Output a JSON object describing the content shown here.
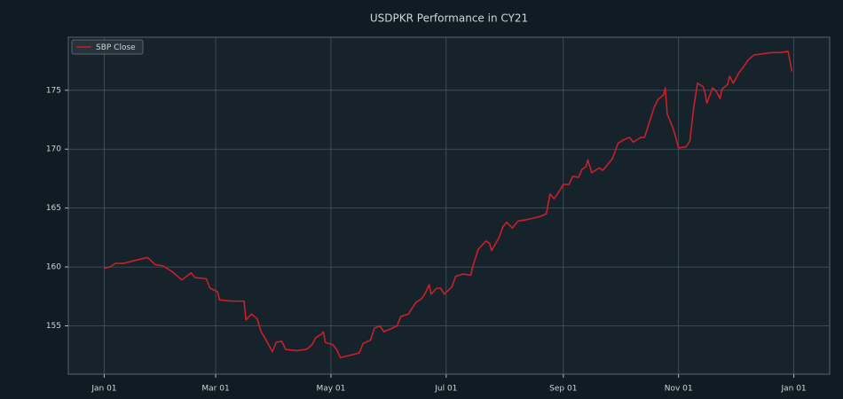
{
  "chart_data": {
    "type": "line",
    "title": "USDPKR Performance in CY21",
    "x": [
      0,
      3,
      6,
      10,
      15,
      20,
      23,
      27,
      31,
      36,
      41,
      46,
      48,
      54,
      56,
      60,
      61,
      68,
      74,
      75,
      78,
      81,
      83,
      85,
      89,
      91,
      94,
      96,
      102,
      107,
      110,
      112,
      115,
      116,
      117,
      121,
      123,
      125,
      130,
      135,
      137,
      141,
      143,
      146,
      148,
      151,
      155,
      157,
      161,
      163,
      165,
      168,
      170,
      172,
      173,
      176,
      178,
      180,
      184,
      186,
      190,
      194,
      195,
      198,
      202,
      204,
      205,
      209,
      211,
      213,
      216,
      219,
      223,
      226,
      231,
      234,
      236,
      238,
      240,
      243,
      246,
      248,
      251,
      253,
      255,
      256,
      258,
      262,
      264,
      269,
      272,
      275,
      278,
      280,
      284,
      286,
      288,
      291,
      293,
      296,
      297,
      298,
      301,
      302,
      304,
      308,
      310,
      312,
      314,
      317,
      318,
      319,
      322,
      324,
      326,
      327,
      330,
      331,
      333,
      336,
      338,
      341,
      344,
      349,
      353,
      358,
      362,
      364
    ],
    "series": [
      {
        "name": "SBP Close",
        "color": "#c8202c",
        "values": [
          159.9,
          160.0,
          160.3,
          160.3,
          160.5,
          160.7,
          160.8,
          160.2,
          160.1,
          159.6,
          158.9,
          159.5,
          159.1,
          159.0,
          158.2,
          157.9,
          157.2,
          157.1,
          157.1,
          155.5,
          156.0,
          155.6,
          154.5,
          154.0,
          152.8,
          153.6,
          153.7,
          153.0,
          152.9,
          153.0,
          153.4,
          154.0,
          154.3,
          154.5,
          153.6,
          153.4,
          153.0,
          152.3,
          152.5,
          152.7,
          153.5,
          153.8,
          154.8,
          155.0,
          154.5,
          154.7,
          155.0,
          155.8,
          156.0,
          156.5,
          157.0,
          157.3,
          157.8,
          158.5,
          157.7,
          158.2,
          158.2,
          157.7,
          158.3,
          159.2,
          159.4,
          159.3,
          160.0,
          161.5,
          162.2,
          162.0,
          161.4,
          162.5,
          163.4,
          163.8,
          163.3,
          163.9,
          164.0,
          164.1,
          164.3,
          164.5,
          166.2,
          165.8,
          166.2,
          167.0,
          167.0,
          167.7,
          167.6,
          168.3,
          168.5,
          169.1,
          168.0,
          168.4,
          168.2,
          169.2,
          170.5,
          170.8,
          171.0,
          170.6,
          171.0,
          171.0,
          172.0,
          173.5,
          174.2,
          174.6,
          175.2,
          173.0,
          171.8,
          171.3,
          170.1,
          170.2,
          170.7,
          173.5,
          175.6,
          175.3,
          174.8,
          173.9,
          175.2,
          174.9,
          174.3,
          175.1,
          175.5,
          176.2,
          175.6,
          176.5,
          176.9,
          177.6,
          178.0,
          178.1,
          178.2,
          178.2,
          178.3,
          176.6
        ]
      }
    ],
    "xlim": [
      -19,
      384
    ],
    "xticks": [
      {
        "value": 0,
        "label": "Jan 01"
      },
      {
        "value": 59,
        "label": "Mar 01"
      },
      {
        "value": 120,
        "label": "May 01"
      },
      {
        "value": 181,
        "label": "Jul 01"
      },
      {
        "value": 243,
        "label": "Sep 01"
      },
      {
        "value": 304,
        "label": "Nov 01"
      },
      {
        "value": 365,
        "label": "Jan 01"
      }
    ],
    "ylim": [
      150.9,
      179.5
    ],
    "yticks": [
      155,
      160,
      165,
      170,
      175
    ],
    "grid": true,
    "legend": "upper left"
  }
}
